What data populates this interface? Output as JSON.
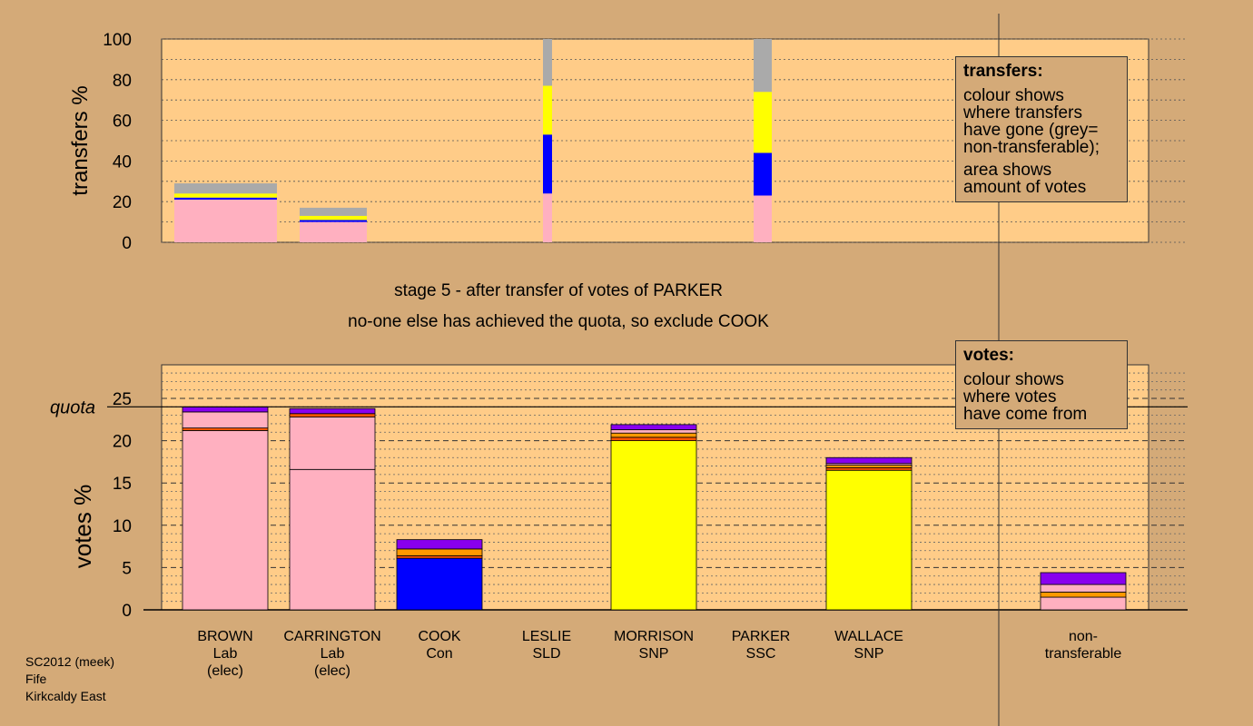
{
  "colors": {
    "background": "#d4aa78",
    "plot_bg": "#ffcc88",
    "Lab": "#ffb0c0",
    "Con": "#0000ff",
    "SNP": "#ffff00",
    "SLD": "#ff9900",
    "SSC": "#ff5500",
    "purple": "#8800ee",
    "grey": "#aaaaaa"
  },
  "stage_text": "stage 5 - after transfer of votes of PARKER",
  "action_text": "no-one else has achieved the quota, so exclude COOK",
  "footer": [
    "SC2012 (meek)",
    "Fife",
    "Kirkcaldy East"
  ],
  "legend_transfers": {
    "title": "transfers:",
    "line1": [
      "colour shows",
      "where transfers",
      "have gone (grey=",
      "non-transferable);"
    ],
    "line2": [
      "area shows",
      "amount of votes"
    ]
  },
  "legend_votes": {
    "title": "votes:",
    "line1": [
      "colour shows",
      "where votes",
      "have come from"
    ]
  },
  "chart_data": [
    {
      "type": "bar",
      "name": "transfers",
      "ylabel": "transfers %",
      "ylim": [
        0,
        100
      ],
      "yticks": [
        0,
        20,
        40,
        60,
        80,
        100
      ],
      "bars": [
        {
          "segments": [
            {
              "c": "Lab",
              "v": 21
            },
            {
              "c": "Con",
              "v": 1
            },
            {
              "c": "SNP",
              "v": 2
            },
            {
              "c": "grey",
              "v": 5
            }
          ]
        },
        {
          "segments": [
            {
              "c": "Lab",
              "v": 10
            },
            {
              "c": "Con",
              "v": 1
            },
            {
              "c": "SNP",
              "v": 2
            },
            {
              "c": "grey",
              "v": 4
            }
          ]
        },
        {
          "segments": [
            {
              "c": "Lab",
              "v": 24
            },
            {
              "c": "Con",
              "v": 29
            },
            {
              "c": "SNP",
              "v": 24
            },
            {
              "c": "grey",
              "v": 23
            }
          ]
        },
        {
          "segments": [
            {
              "c": "Lab",
              "v": 23
            },
            {
              "c": "Con",
              "v": 21
            },
            {
              "c": "SNP",
              "v": 30
            },
            {
              "c": "grey",
              "v": 26
            }
          ]
        }
      ]
    },
    {
      "type": "bar",
      "name": "votes",
      "ylabel": "votes %",
      "ylim": [
        0,
        25
      ],
      "yticks": [
        0,
        5,
        10,
        15,
        20,
        25
      ],
      "quota": 24,
      "quota_label": "quota",
      "categories": [
        {
          "name": "BROWN",
          "party": "Lab",
          "note": "(elec)"
        },
        {
          "name": "CARRINGTON",
          "party": "Lab",
          "note": "(elec)"
        },
        {
          "name": "COOK",
          "party": "Con",
          "note": ""
        },
        {
          "name": "LESLIE",
          "party": "SLD",
          "note": ""
        },
        {
          "name": "MORRISON",
          "party": "SNP",
          "note": ""
        },
        {
          "name": "PARKER",
          "party": "SSC",
          "note": ""
        },
        {
          "name": "WALLACE",
          "party": "SNP",
          "note": ""
        },
        {
          "name": "non-",
          "party": "transferable",
          "note": ""
        }
      ],
      "series": [
        {
          "segments": [
            {
              "c": "Lab",
              "v": 21.2
            },
            {
              "c": "SSC",
              "v": 0.3
            },
            {
              "c": "Lab",
              "v": 1.9
            },
            {
              "c": "purple",
              "v": 0.6
            }
          ]
        },
        {
          "segments": [
            {
              "c": "Lab",
              "v": 16.6
            },
            {
              "c": "Lab",
              "v": 6.2
            },
            {
              "c": "SSC",
              "v": 0.4
            },
            {
              "c": "purple",
              "v": 0.6
            }
          ]
        },
        {
          "segments": [
            {
              "c": "Con",
              "v": 6.1
            },
            {
              "c": "SSC",
              "v": 0.3
            },
            {
              "c": "SLD",
              "v": 0.8
            },
            {
              "c": "purple",
              "v": 1.1
            }
          ]
        },
        {
          "segments": []
        },
        {
          "segments": [
            {
              "c": "SNP",
              "v": 20.0
            },
            {
              "c": "SSC",
              "v": 0.4
            },
            {
              "c": "SLD",
              "v": 0.5
            },
            {
              "c": "Lab",
              "v": 0.4
            },
            {
              "c": "purple",
              "v": 0.6
            }
          ]
        },
        {
          "segments": []
        },
        {
          "segments": [
            {
              "c": "SNP",
              "v": 16.5
            },
            {
              "c": "SSC",
              "v": 0.3
            },
            {
              "c": "SLD",
              "v": 0.3
            },
            {
              "c": "Lab",
              "v": 0.2
            },
            {
              "c": "purple",
              "v": 0.7
            }
          ]
        },
        {
          "segments": [
            {
              "c": "Lab",
              "v": 1.5
            },
            {
              "c": "SLD",
              "v": 0.6
            },
            {
              "c": "Lab",
              "v": 0.9
            },
            {
              "c": "purple",
              "v": 1.4
            }
          ]
        }
      ]
    }
  ]
}
